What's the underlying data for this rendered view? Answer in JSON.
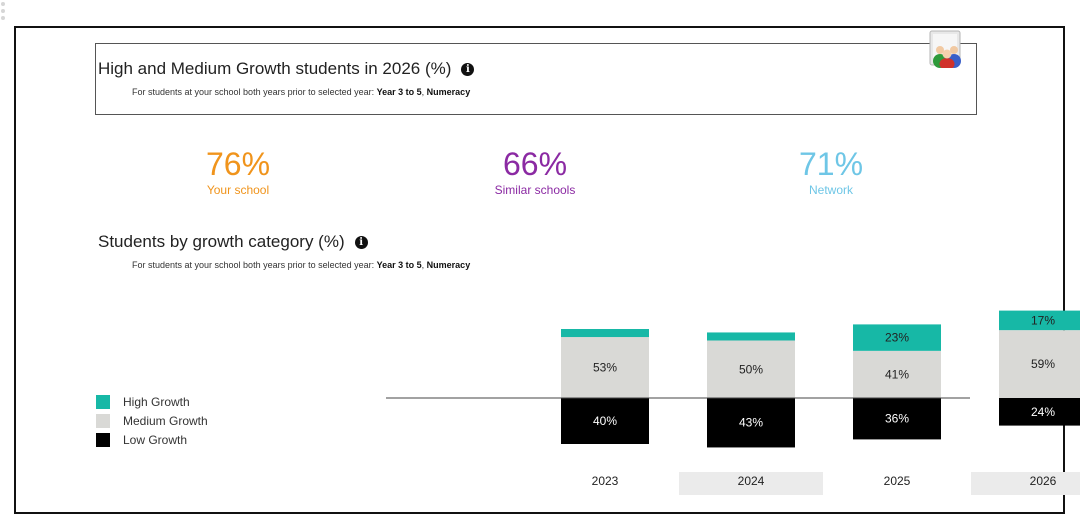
{
  "panel": {
    "title": "High and Medium Growth students in 2026 (%)",
    "note_prefix": "For students at your school both years prior to selected year: ",
    "note_year": "Year 3 to 5",
    "note_sep": ", ",
    "note_domain": "Numeracy"
  },
  "kpis": [
    {
      "value": "76%",
      "label": "Your school",
      "color": "#f0941c"
    },
    {
      "value": "66%",
      "label": "Similar schools",
      "color": "#8b2aa3"
    },
    {
      "value": "71%",
      "label": "Network",
      "color": "#6ec6e6"
    }
  ],
  "section": {
    "title": "Students by growth category (%)",
    "note_prefix": "For students at your school both years prior to selected year: ",
    "note_year": "Year 3 to 5",
    "note_sep": ", ",
    "note_domain": "Numeracy"
  },
  "legend": [
    {
      "label": "High Growth",
      "color": "#17b8a6"
    },
    {
      "label": "Medium Growth",
      "color": "#d9d9d6"
    },
    {
      "label": "Low Growth",
      "color": "#000000"
    }
  ],
  "chart_data": {
    "type": "bar",
    "stacked": "diverging",
    "categories": [
      "2023",
      "2024",
      "2025",
      "2026"
    ],
    "series": [
      {
        "name": "High Growth",
        "values": [
          7,
          7,
          23,
          17
        ],
        "labels": [
          "",
          "",
          "23%",
          "17%"
        ],
        "color": "#17b8a6"
      },
      {
        "name": "Medium Growth",
        "values": [
          53,
          50,
          41,
          59
        ],
        "labels": [
          "53%",
          "50%",
          "41%",
          "59%"
        ],
        "color": "#d9d9d6"
      },
      {
        "name": "Low Growth",
        "values": [
          40,
          43,
          36,
          24
        ],
        "labels": [
          "40%",
          "43%",
          "36%",
          "24%"
        ],
        "color": "#000000"
      }
    ],
    "shaded_categories": [
      "2024",
      "2026"
    ]
  }
}
